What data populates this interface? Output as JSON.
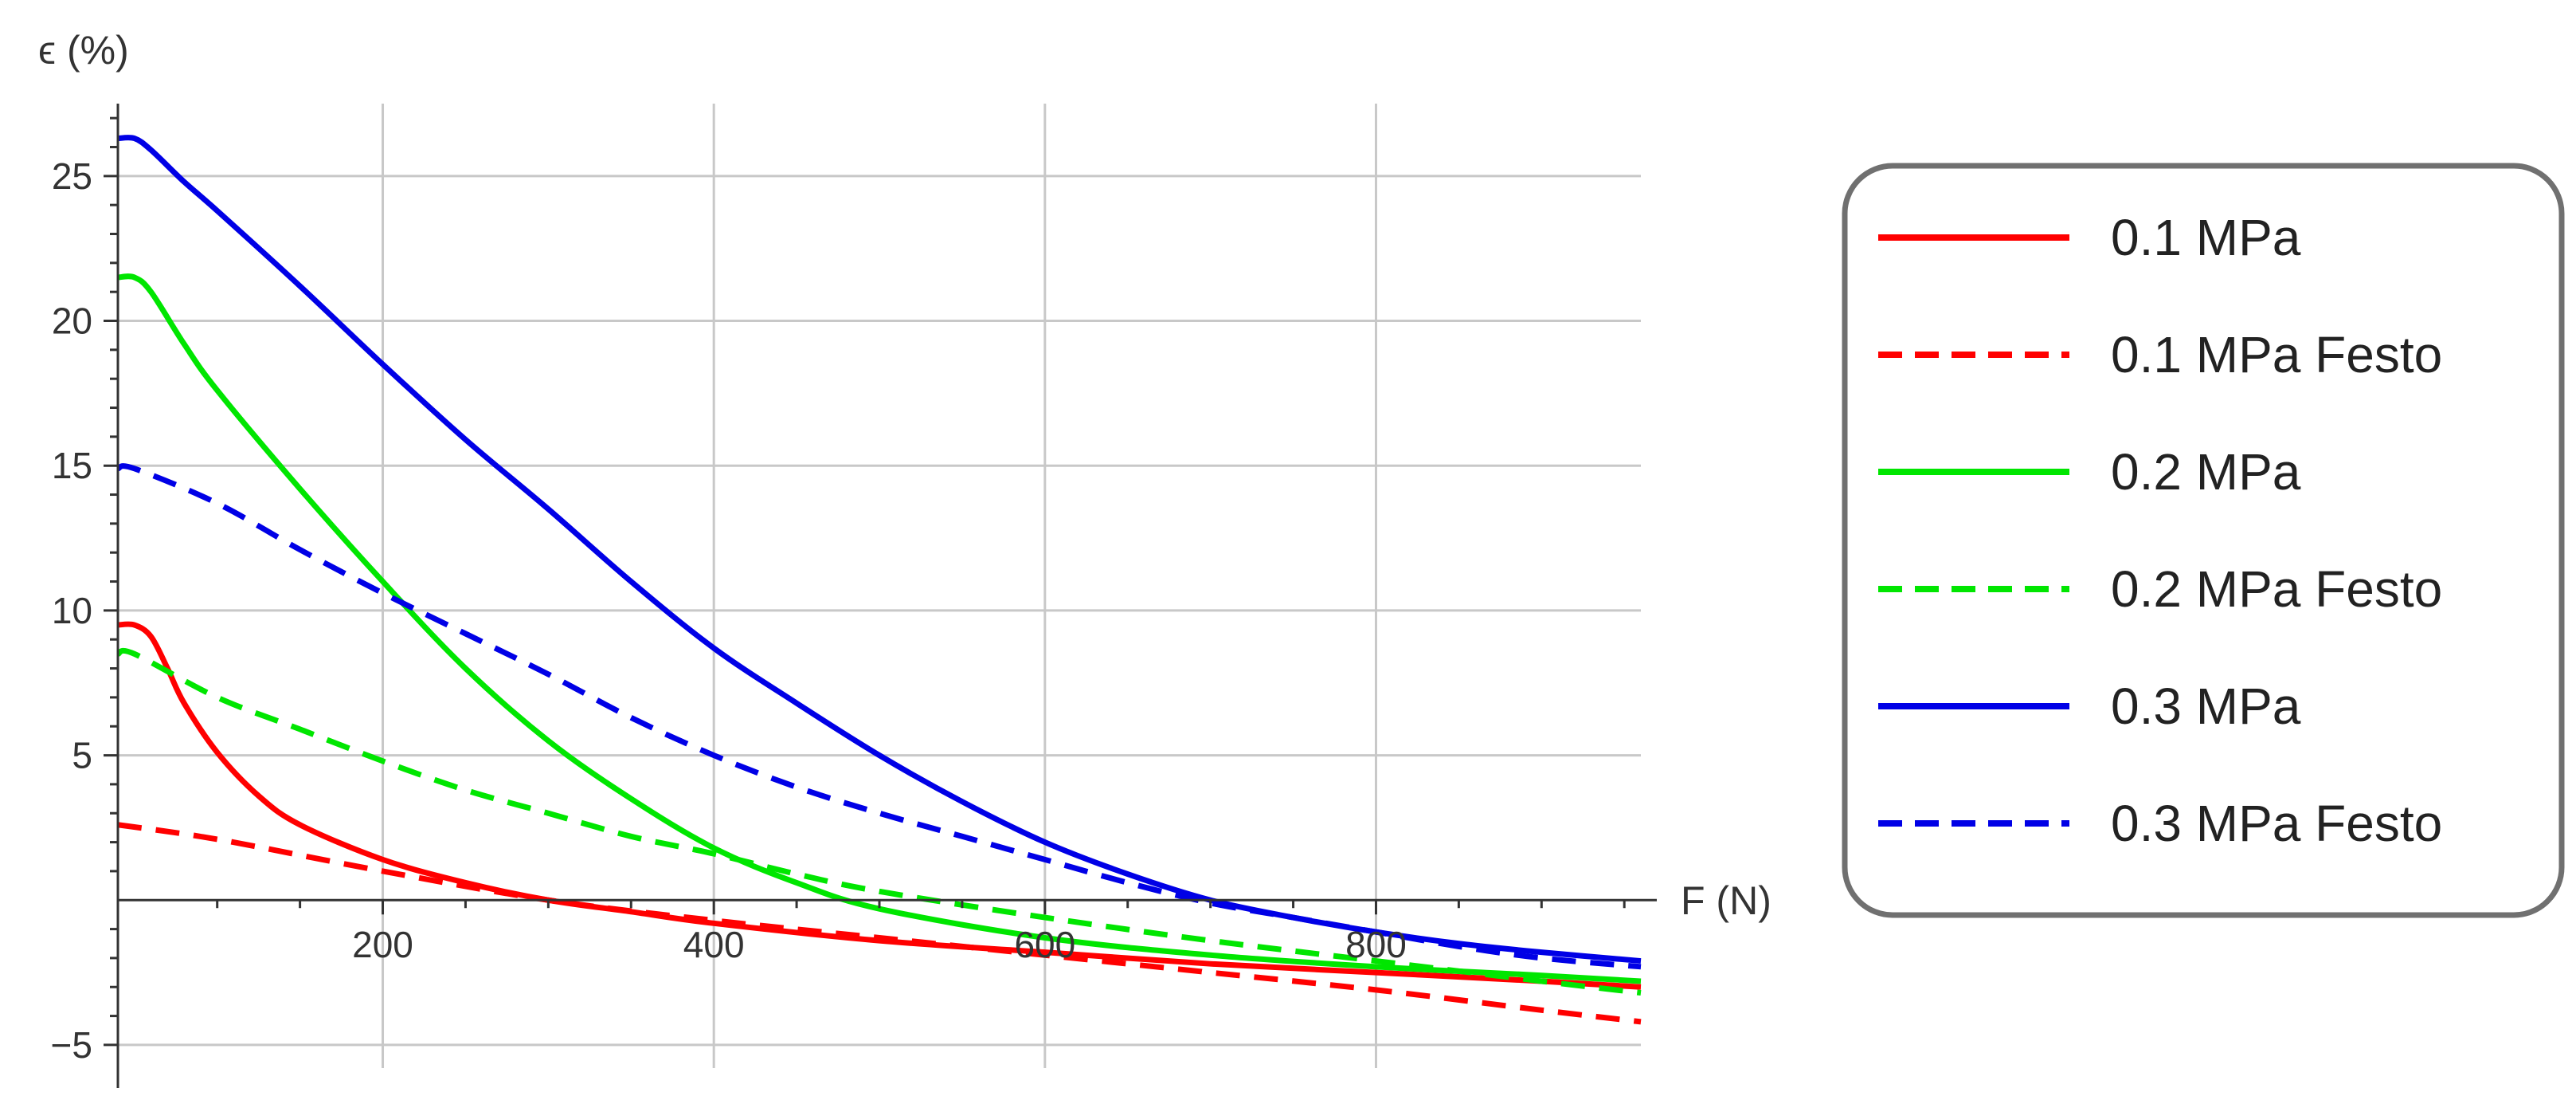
{
  "chart_data": {
    "type": "line",
    "xlabel": "F (N)",
    "ylabel": "ϵ (%)",
    "xlim": [
      40,
      960
    ],
    "ylim": [
      -5.8,
      27.5
    ],
    "x_ticks": [
      200,
      400,
      600,
      800
    ],
    "y_ticks": [
      -5,
      5,
      10,
      15,
      20,
      25
    ],
    "grid": true,
    "legend_position": "right",
    "colors": {
      "red": "#ff0000",
      "green": "#00e600",
      "blue": "#0000e6",
      "grid": "#c8c8c8",
      "axis": "#333333"
    },
    "series": [
      {
        "name": "0.1 MPa",
        "color": "#ff0000",
        "dashed": false,
        "x": [
          40,
          50,
          60,
          70,
          80,
          100,
          125,
          150,
          200,
          250,
          300,
          350,
          400,
          500,
          600,
          700,
          800,
          900,
          960
        ],
        "y": [
          9.5,
          9.5,
          9.1,
          8.0,
          6.8,
          5.1,
          3.6,
          2.6,
          1.4,
          0.6,
          0.0,
          -0.4,
          -0.8,
          -1.4,
          -1.8,
          -2.2,
          -2.5,
          -2.8,
          -3.0
        ]
      },
      {
        "name": "0.1 MPa Festo",
        "color": "#ff0000",
        "dashed": true,
        "x": [
          40,
          100,
          200,
          300,
          400,
          500,
          600,
          700,
          800,
          900,
          960
        ],
        "y": [
          2.6,
          2.1,
          1.0,
          0.0,
          -0.7,
          -1.3,
          -1.9,
          -2.5,
          -3.1,
          -3.8,
          -4.2
        ]
      },
      {
        "name": "0.2 MPa",
        "color": "#00e600",
        "dashed": false,
        "x": [
          40,
          50,
          60,
          80,
          100,
          150,
          200,
          250,
          300,
          350,
          400,
          450,
          500,
          600,
          700,
          800,
          900,
          960
        ],
        "y": [
          21.5,
          21.5,
          21.0,
          19.2,
          17.6,
          14.2,
          11.0,
          8.0,
          5.5,
          3.5,
          1.8,
          0.6,
          -0.3,
          -1.3,
          -1.9,
          -2.3,
          -2.6,
          -2.8
        ]
      },
      {
        "name": "0.2 MPa Festo",
        "color": "#00e600",
        "dashed": true,
        "x": [
          40,
          50,
          100,
          150,
          200,
          250,
          300,
          350,
          400,
          450,
          500,
          600,
          700,
          800,
          900,
          960
        ],
        "y": [
          8.5,
          8.5,
          7.0,
          5.9,
          4.8,
          3.8,
          3.0,
          2.2,
          1.6,
          0.9,
          0.3,
          -0.6,
          -1.4,
          -2.1,
          -2.8,
          -3.2
        ]
      },
      {
        "name": "0.3 MPa",
        "color": "#0000e6",
        "dashed": false,
        "x": [
          40,
          50,
          60,
          80,
          100,
          150,
          200,
          250,
          300,
          350,
          400,
          450,
          500,
          550,
          600,
          650,
          700,
          750,
          800,
          850,
          900,
          960
        ],
        "y": [
          26.3,
          26.3,
          25.9,
          24.8,
          23.8,
          21.2,
          18.5,
          15.9,
          13.5,
          11.0,
          8.7,
          6.8,
          5.0,
          3.4,
          2.0,
          0.9,
          0.0,
          -0.6,
          -1.1,
          -1.5,
          -1.8,
          -2.1
        ]
      },
      {
        "name": "0.3 MPa Festo",
        "color": "#0000e6",
        "dashed": true,
        "x": [
          40,
          50,
          100,
          150,
          200,
          250,
          300,
          350,
          400,
          450,
          500,
          550,
          600,
          650,
          700,
          750,
          800,
          850,
          900,
          960
        ],
        "y": [
          14.9,
          14.9,
          13.7,
          12.1,
          10.6,
          9.2,
          7.8,
          6.3,
          5.0,
          3.9,
          3.0,
          2.2,
          1.4,
          0.6,
          -0.1,
          -0.6,
          -1.1,
          -1.6,
          -2.0,
          -2.3
        ]
      }
    ]
  }
}
